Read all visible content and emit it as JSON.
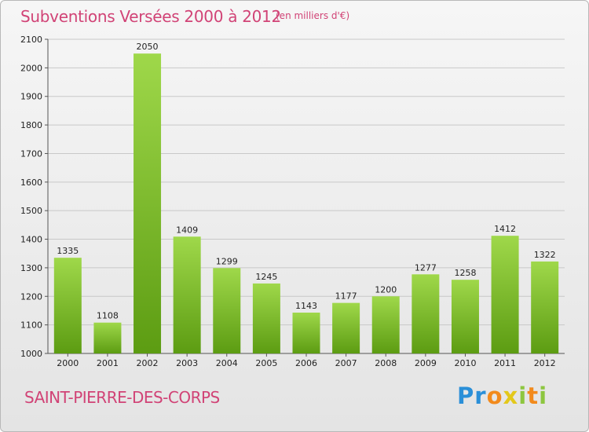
{
  "header": {
    "title": "Subventions Versées 2000 à 2012",
    "unit_note": "(en milliers d'€)"
  },
  "footer": {
    "city": "SAINT-PIERRE-DES-CORPS",
    "logo_text": "Proxiti"
  },
  "colors": {
    "bar_light": "#9fd84a",
    "bar_dark": "#5c9c12",
    "title": "#d14376",
    "grid": "#c8c8c8"
  },
  "chart_data": {
    "type": "bar",
    "title": "Subventions Versées 2000 à 2012",
    "subtitle": "(en milliers d'€)",
    "xlabel": "",
    "ylabel": "",
    "categories": [
      "2000",
      "2001",
      "2002",
      "2003",
      "2004",
      "2005",
      "2006",
      "2007",
      "2008",
      "2009",
      "2010",
      "2011",
      "2012"
    ],
    "values": [
      1335,
      1108,
      2050,
      1409,
      1299,
      1245,
      1143,
      1177,
      1200,
      1277,
      1258,
      1412,
      1322
    ],
    "ylim": [
      1000,
      2100
    ],
    "yticks": [
      1000,
      1100,
      1200,
      1300,
      1400,
      1500,
      1600,
      1700,
      1800,
      1900,
      2000,
      2100
    ],
    "grid": true,
    "legend": "none"
  }
}
